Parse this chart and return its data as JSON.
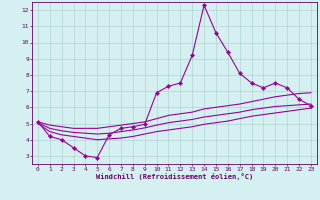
{
  "xlabel": "Windchill (Refroidissement éolien,°C)",
  "x_values": [
    0,
    1,
    2,
    3,
    4,
    5,
    6,
    7,
    8,
    9,
    10,
    11,
    12,
    13,
    14,
    15,
    16,
    17,
    18,
    19,
    20,
    21,
    22,
    23
  ],
  "main_line": [
    5.1,
    4.2,
    4.0,
    3.5,
    3.0,
    2.9,
    4.3,
    4.7,
    4.8,
    4.95,
    6.9,
    7.3,
    7.5,
    9.2,
    12.3,
    10.6,
    9.4,
    8.1,
    7.5,
    7.2,
    7.5,
    7.2,
    6.5,
    6.1
  ],
  "upper_line": [
    5.1,
    4.9,
    4.8,
    4.7,
    4.7,
    4.7,
    4.8,
    4.9,
    5.0,
    5.1,
    5.3,
    5.5,
    5.6,
    5.7,
    5.9,
    6.0,
    6.1,
    6.2,
    6.35,
    6.5,
    6.65,
    6.75,
    6.85,
    6.9
  ],
  "lower_line": [
    5.0,
    4.5,
    4.3,
    4.2,
    4.1,
    4.0,
    4.05,
    4.1,
    4.2,
    4.35,
    4.5,
    4.6,
    4.7,
    4.8,
    4.95,
    5.05,
    5.15,
    5.3,
    5.45,
    5.55,
    5.65,
    5.75,
    5.85,
    5.95
  ],
  "mid_line": [
    5.05,
    4.7,
    4.55,
    4.45,
    4.4,
    4.35,
    4.4,
    4.5,
    4.6,
    4.73,
    4.9,
    5.05,
    5.15,
    5.25,
    5.4,
    5.5,
    5.6,
    5.7,
    5.85,
    5.95,
    6.05,
    6.1,
    6.15,
    6.2
  ],
  "ylim": [
    2.5,
    12.5
  ],
  "xlim": [
    -0.5,
    23.5
  ],
  "yticks": [
    3,
    4,
    5,
    6,
    7,
    8,
    9,
    10,
    11,
    12
  ],
  "xticks": [
    0,
    1,
    2,
    3,
    4,
    5,
    6,
    7,
    8,
    9,
    10,
    11,
    12,
    13,
    14,
    15,
    16,
    17,
    18,
    19,
    20,
    21,
    22,
    23
  ],
  "line_color": "#990099",
  "bg_color": "#d4f0f0",
  "grid_color": "#aacccc",
  "axis_color": "#660066",
  "tick_fontsize": 4.5,
  "xlabel_fontsize": 5.0,
  "linewidth": 0.8,
  "marker_size": 2.2
}
